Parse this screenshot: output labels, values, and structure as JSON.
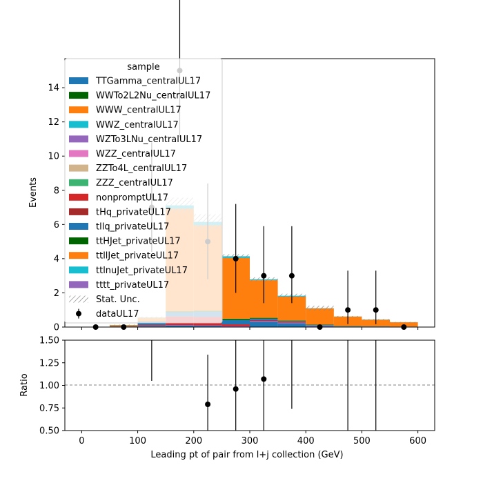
{
  "chart_data": {
    "type": "stacked-histogram-with-ratio",
    "xlabel": "Leading pt of pair from l+j collection (GeV)",
    "ylabel": "Events",
    "ratio_ylabel": "Ratio",
    "xlim": [
      -30,
      630
    ],
    "ylim": [
      0,
      15.7
    ],
    "ratio_ylim": [
      0.5,
      1.5
    ],
    "x_ticks": [
      0,
      100,
      200,
      300,
      400,
      500,
      600
    ],
    "y_ticks": [
      0,
      2,
      4,
      6,
      8,
      10,
      12,
      14
    ],
    "ratio_y_ticks": [
      "0.50",
      "0.75",
      "1.00",
      "1.25",
      "1.50"
    ],
    "bin_edges": [
      50,
      100,
      150,
      200,
      250,
      300,
      350,
      400,
      450,
      500,
      550,
      600
    ],
    "legend_title": "sample",
    "stat_unc_label": "Stat. Unc.",
    "data_label": "dataUL17",
    "series": [
      {
        "name": "TTGamma_centralUL17",
        "color": "#1f77b4",
        "values": [
          0.02,
          0.05,
          0.08,
          0.06,
          0.02,
          0.3,
          0.2,
          0.05,
          0.02,
          0.02,
          0.02
        ]
      },
      {
        "name": "WWTo2L2Nu_centralUL17",
        "color": "#006400",
        "values": [
          0,
          0,
          0,
          0,
          0,
          0,
          0,
          0,
          0,
          0,
          0
        ]
      },
      {
        "name": "WWW_centralUL17",
        "color": "#ff7f0e",
        "values": [
          0,
          0,
          0,
          0,
          0,
          0,
          0,
          0,
          0,
          0,
          0
        ]
      },
      {
        "name": "WWZ_centralUL17",
        "color": "#17becf",
        "values": [
          0,
          0,
          0,
          0,
          0,
          0,
          0,
          0,
          0,
          0,
          0
        ]
      },
      {
        "name": "WZTo3LNu_centralUL17",
        "color": "#9467bd",
        "values": [
          0.01,
          0.02,
          0.04,
          0.04,
          0.04,
          0.06,
          0.05,
          0.04,
          0.01,
          0.01,
          0
        ]
      },
      {
        "name": "WZZ_centralUL17",
        "color": "#e377c2",
        "values": [
          0,
          0,
          0,
          0,
          0,
          0,
          0,
          0,
          0,
          0,
          0
        ]
      },
      {
        "name": "ZZTo4L_centralUL17",
        "color": "#d2b48c",
        "values": [
          0,
          0,
          0,
          0,
          0,
          0,
          0,
          0,
          0,
          0,
          0
        ]
      },
      {
        "name": "ZZZ_centralUL17",
        "color": "#3cb371",
        "values": [
          0,
          0,
          0,
          0,
          0,
          0,
          0,
          0,
          0,
          0,
          0
        ]
      },
      {
        "name": "nonpromptUL17",
        "color": "#d62728",
        "values": [
          0.01,
          0.05,
          0.5,
          0.5,
          0.1,
          0.05,
          0.05,
          0,
          0,
          0,
          0
        ]
      },
      {
        "name": "tHq_privateUL17",
        "color": "#a52a2a",
        "values": [
          0,
          0,
          0,
          0,
          0,
          0,
          0,
          0,
          0,
          0,
          0
        ]
      },
      {
        "name": "tllq_privateUL17",
        "color": "#1f77b4",
        "values": [
          0.01,
          0.2,
          0.25,
          0.3,
          0.25,
          0.08,
          0.05,
          0.03,
          0.02,
          0.01,
          0.01
        ]
      },
      {
        "name": "ttHJet_privateUL17",
        "color": "#006400",
        "values": [
          0.01,
          0.02,
          0.05,
          0.05,
          0.08,
          0.05,
          0.03,
          0.02,
          0.01,
          0.01,
          0
        ]
      },
      {
        "name": "ttllJet_privateUL17",
        "color": "#ff7f0e",
        "values": [
          0.05,
          0.2,
          6.0,
          5.0,
          3.55,
          2.2,
          1.4,
          0.95,
          0.55,
          0.38,
          0.25
        ]
      },
      {
        "name": "ttlnuJet_privateUL17",
        "color": "#17becf",
        "values": [
          0.01,
          0.02,
          0.2,
          0.2,
          0.1,
          0.05,
          0.05,
          0.01,
          0.01,
          0.01,
          0
        ]
      },
      {
        "name": "tttt_privateUL17",
        "color": "#9467bd",
        "values": [
          0,
          0,
          0,
          0,
          0,
          0,
          0,
          0,
          0,
          0,
          0
        ]
      }
    ],
    "stat_unc": [
      0.02,
      0.05,
      0.45,
      0.45,
      0.12,
      0.12,
      0.12,
      0.15,
      0.03,
      0.03,
      0.02
    ],
    "data": {
      "x": [
        25,
        75,
        125,
        175,
        225,
        275,
        325,
        375,
        425,
        475,
        525,
        575
      ],
      "y": [
        0,
        0,
        7,
        15,
        5,
        4,
        3,
        3,
        0,
        1,
        1,
        0
      ],
      "err_low": [
        0,
        0,
        2.6,
        3.9,
        2.2,
        2.0,
        1.6,
        1.6,
        0,
        0.83,
        0.83,
        0
      ],
      "err_high": [
        0,
        0,
        3.8,
        4.9,
        3.4,
        3.2,
        2.9,
        2.9,
        0,
        2.3,
        2.3,
        0
      ]
    },
    "ratio": {
      "x": [
        125,
        225,
        275,
        325,
        375,
        475,
        525
      ],
      "y": [
        null,
        0.79,
        0.96,
        1.07,
        null,
        null,
        null
      ],
      "bar_low": [
        1.05,
        0.5,
        0.5,
        0.5,
        0.74,
        0.5,
        0.5
      ],
      "bar_high": [
        1.5,
        1.34,
        1.5,
        1.5,
        1.5,
        1.5,
        1.5
      ]
    }
  }
}
